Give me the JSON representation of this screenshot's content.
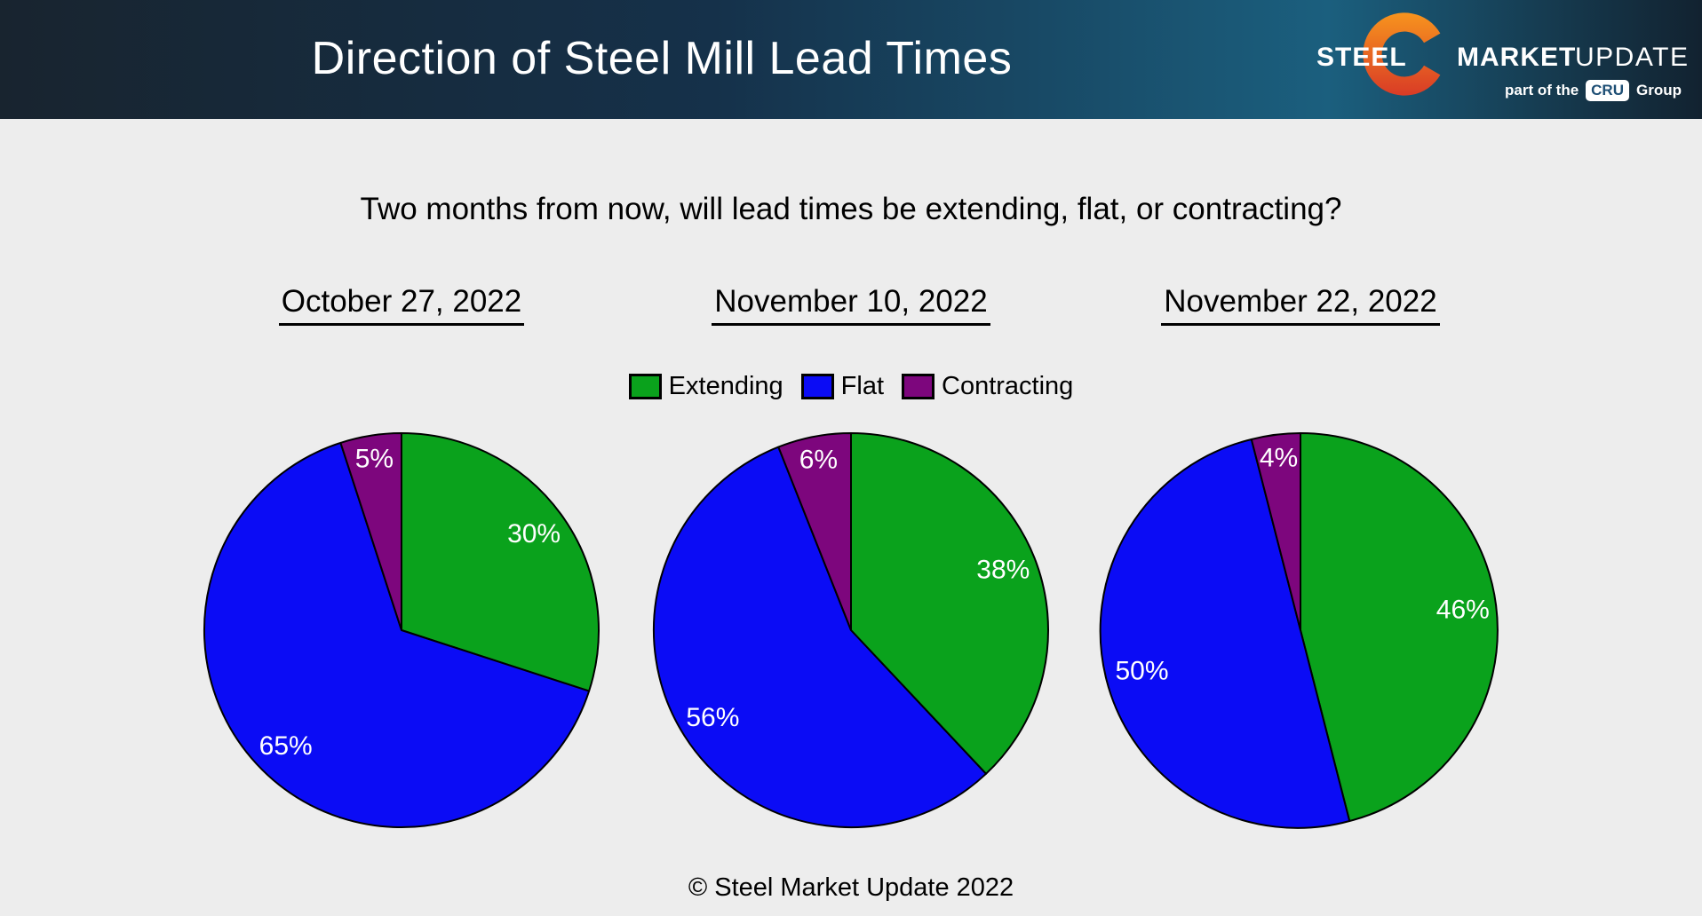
{
  "header": {
    "title": "Direction of Steel Mill Lead Times",
    "logo": {
      "word1": "STEEL",
      "word2": "MARKET",
      "word3": "UPDATE",
      "tagline_prefix": "part of the",
      "tagline_badge": "CRU",
      "tagline_suffix": "Group",
      "crescent_color_top": "#f7941e",
      "crescent_color_bottom": "#d93b26"
    }
  },
  "question": "Two months from now, will lead times be extending, flat, or contracting?",
  "legend": {
    "position": "top-center",
    "items": [
      {
        "label": "Extending",
        "color": "#0aa21c"
      },
      {
        "label": "Flat",
        "color": "#0b0cf5"
      },
      {
        "label": "Contracting",
        "color": "#7d067d"
      }
    ]
  },
  "chart_data": [
    {
      "type": "pie",
      "title": "October 27, 2022",
      "categories": [
        "Extending",
        "Flat",
        "Contracting"
      ],
      "values": [
        30,
        65,
        5
      ],
      "labels": [
        "30%",
        "65%",
        "5%"
      ],
      "colors": [
        "#0aa21c",
        "#0b0cf5",
        "#7d067d"
      ],
      "start_angle_deg": 0,
      "direction": "clockwise"
    },
    {
      "type": "pie",
      "title": "November 10, 2022",
      "categories": [
        "Extending",
        "Flat",
        "Contracting"
      ],
      "values": [
        38,
        56,
        6
      ],
      "labels": [
        "38%",
        "56%",
        "6%"
      ],
      "colors": [
        "#0aa21c",
        "#0b0cf5",
        "#7d067d"
      ],
      "start_angle_deg": 0,
      "direction": "clockwise"
    },
    {
      "type": "pie",
      "title": "November 22, 2022",
      "categories": [
        "Extending",
        "Flat",
        "Contracting"
      ],
      "values": [
        46,
        50,
        4
      ],
      "labels": [
        "46%",
        "50%",
        "4%"
      ],
      "colors": [
        "#0aa21c",
        "#0b0cf5",
        "#7d067d"
      ],
      "start_angle_deg": 0,
      "direction": "clockwise"
    }
  ],
  "footer": "© Steel Market Update 2022",
  "colors": {
    "background": "#ededed",
    "header_gradient": [
      "#18242f",
      "#15314a",
      "#1b5f7e",
      "#122230"
    ],
    "pie_stroke": "#000000",
    "slice_label_color": "#ffffff",
    "cru_text": "#1d4e74",
    "text": "#000000"
  }
}
